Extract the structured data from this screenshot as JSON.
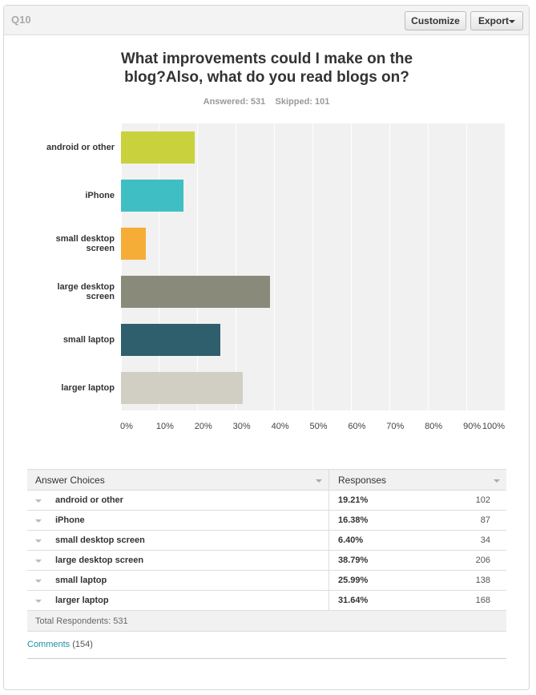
{
  "header": {
    "question": "Q10",
    "customize": "Customize",
    "export": "Export"
  },
  "chart_data": {
    "type": "bar",
    "orientation": "horizontal",
    "title": "What improvements could I make on the blog?Also, what do you read blogs on?",
    "categories": [
      "android or other",
      "iPhone",
      "small desktop screen",
      "large desktop screen",
      "small laptop",
      "larger laptop"
    ],
    "values": [
      19.21,
      16.38,
      6.4,
      38.79,
      25.99,
      31.64
    ],
    "colors": [
      "#c9d13c",
      "#3fbfc4",
      "#f6ad37",
      "#8a8a7b",
      "#2f5f6c",
      "#d1cfc4"
    ],
    "xlim": [
      0,
      100
    ],
    "xticks": [
      {
        "value": 0,
        "label": "0%"
      },
      {
        "value": 10,
        "label": "10%"
      },
      {
        "value": 20,
        "label": "20%"
      },
      {
        "value": 30,
        "label": "30%"
      },
      {
        "value": 40,
        "label": "40%"
      },
      {
        "value": 50,
        "label": "50%"
      },
      {
        "value": 60,
        "label": "60%"
      },
      {
        "value": 70,
        "label": "70%"
      },
      {
        "value": 80,
        "label": "80%"
      },
      {
        "value": 90,
        "label": "90%"
      },
      {
        "value": 100,
        "label": "100%"
      }
    ],
    "grid": true
  },
  "stats": {
    "answered": "Answered: 531",
    "skipped": "Skipped: 101"
  },
  "table": {
    "headers": [
      "Answer Choices",
      "Responses"
    ],
    "rows": [
      [
        "android or other",
        "19.21%",
        "102"
      ],
      [
        "iPhone",
        "16.38%",
        "87"
      ],
      [
        "small desktop screen",
        "6.40%",
        "34"
      ],
      [
        "large desktop screen",
        "38.79%",
        "206"
      ],
      [
        "small laptop",
        "25.99%",
        "138"
      ],
      [
        "larger laptop",
        "31.64%",
        "168"
      ]
    ],
    "total": "Total Respondents: 531"
  },
  "comments": {
    "label": "Comments",
    "count": "(154)"
  }
}
